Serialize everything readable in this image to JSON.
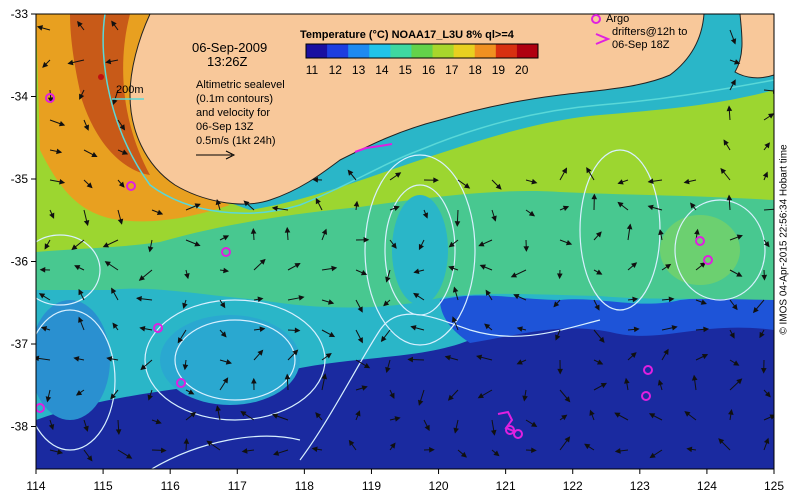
{
  "map": {
    "date": "06-Sep-2009",
    "time": "13:26Z",
    "colorbar_title": "Temperature (°C) NOAA17_L3U 8% ql>=4",
    "colorbar_ticks": [
      "11",
      "12",
      "13",
      "14",
      "15",
      "16",
      "17",
      "18",
      "19",
      "20"
    ],
    "colorbar_colors": [
      "#1a0fa0",
      "#1e3ee0",
      "#1f8af0",
      "#22c4e8",
      "#3ed8a0",
      "#63d24a",
      "#a8d62c",
      "#e8d020",
      "#f09020",
      "#d83010",
      "#b00010"
    ],
    "contour_label": "200m",
    "note_lines": [
      "Altimetric sealevel",
      "(0.1m contours)",
      "and velocity for",
      "06-Sep 13Z",
      "0.5m/s (1kt 24h)"
    ],
    "argo_label_lines": [
      "Argo",
      "drifters@12h to",
      "06-Sep 18Z"
    ],
    "credit": "© IMOS 04-Apr-2015 22:56:34 Hobart time",
    "x_ticks": [
      "114",
      "115",
      "116",
      "117",
      "118",
      "119",
      "120",
      "121",
      "122",
      "123",
      "124",
      "125"
    ],
    "y_ticks": [
      "-33",
      "-34",
      "-35",
      "-36",
      "-37",
      "-38"
    ],
    "colors": {
      "land": "#f8c89a",
      "argo": "#e020e0",
      "contour": "#d8f0ff",
      "isobath": "#5ad8d8"
    }
  }
}
